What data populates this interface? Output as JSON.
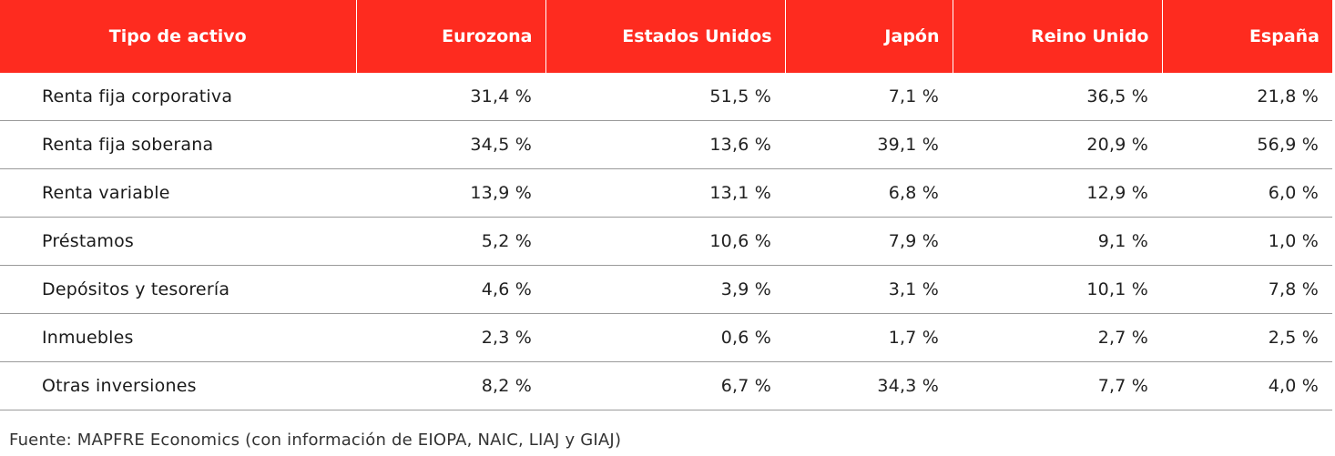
{
  "table": {
    "headers": [
      "Tipo de activo",
      "Eurozona",
      "Estados Unidos",
      "Japón",
      "Reino Unido",
      "España"
    ],
    "rows": [
      [
        "Renta fija corporativa",
        "31,4 %",
        "51,5 %",
        "7,1 %",
        "36,5 %",
        "21,8 %"
      ],
      [
        "Renta fija soberana",
        "34,5 %",
        "13,6 %",
        "39,1 %",
        "20,9 %",
        "56,9 %"
      ],
      [
        "Renta variable",
        "13,9 %",
        "13,1 %",
        "6,8 %",
        "12,9 %",
        "6,0 %"
      ],
      [
        "Préstamos",
        "5,2 %",
        "10,6 %",
        "7,9 %",
        "9,1 %",
        "1,0 %"
      ],
      [
        "Depósitos y tesorería",
        "4,6 %",
        "3,9 %",
        "3,1 %",
        "10,1 %",
        "7,8 %"
      ],
      [
        "Inmuebles",
        "2,3 %",
        "0,6 %",
        "1,7 %",
        "2,7 %",
        "2,5 %"
      ],
      [
        "Otras inversiones",
        "8,2 %",
        "6,7 %",
        "34,3 %",
        "7,7 %",
        "4,0 %"
      ]
    ]
  },
  "source": "Fuente: MAPFRE Economics (con información de EIOPA, NAIC, LIAJ y GIAJ)",
  "colors": {
    "header_background": "#fe2b1f",
    "header_text": "#ffffff",
    "row_divider": "#9a9a9a"
  }
}
